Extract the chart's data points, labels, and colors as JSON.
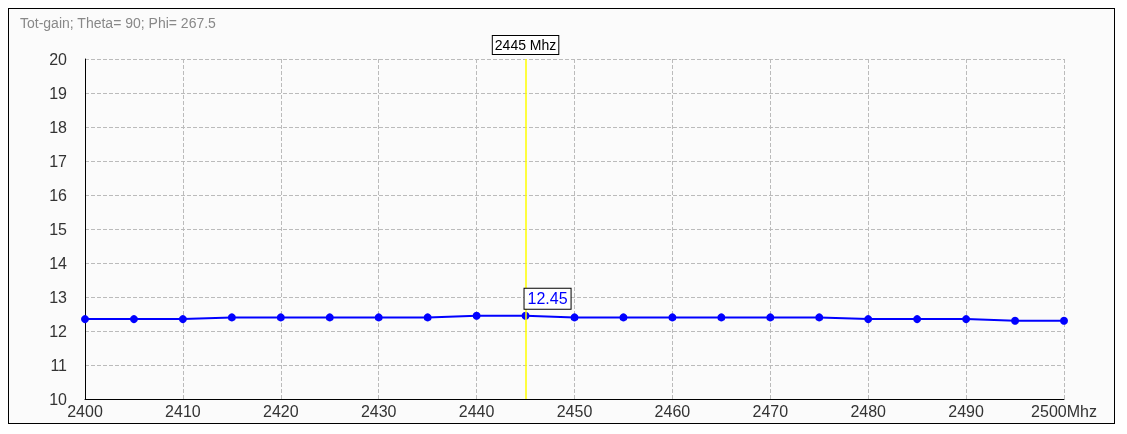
{
  "chart_data": {
    "type": "line",
    "title": "Tot-gain; Theta= 90; Phi= 267.5",
    "x": [
      2400,
      2405,
      2410,
      2415,
      2420,
      2425,
      2430,
      2435,
      2440,
      2445,
      2450,
      2455,
      2460,
      2465,
      2470,
      2475,
      2480,
      2485,
      2490,
      2495,
      2500
    ],
    "series": [
      {
        "color": "#0000ff",
        "values": [
          12.35,
          12.35,
          12.35,
          12.4,
          12.4,
          12.4,
          12.4,
          12.4,
          12.45,
          12.45,
          12.4,
          12.4,
          12.4,
          12.4,
          12.4,
          12.4,
          12.35,
          12.35,
          12.35,
          12.3,
          12.3
        ]
      }
    ],
    "xlim": [
      2400,
      2500
    ],
    "xticks": [
      2400,
      2410,
      2420,
      2430,
      2440,
      2450,
      2460,
      2470,
      2480,
      2490,
      {
        "value": 2500,
        "label": "2500Mhz"
      }
    ],
    "ylim": [
      10,
      20
    ],
    "yticks": [
      10,
      11,
      12,
      13,
      14,
      15,
      16,
      17,
      18,
      19,
      20
    ],
    "ref_lines": [
      {
        "axis": "x",
        "value": 2445,
        "label": "2445 Mhz",
        "color": "#ffff00"
      }
    ],
    "annotations": [
      {
        "text": "12.45",
        "x": 2445,
        "y": 12.45
      }
    ],
    "grid": true,
    "marker": "circle",
    "line_style": "solid"
  }
}
